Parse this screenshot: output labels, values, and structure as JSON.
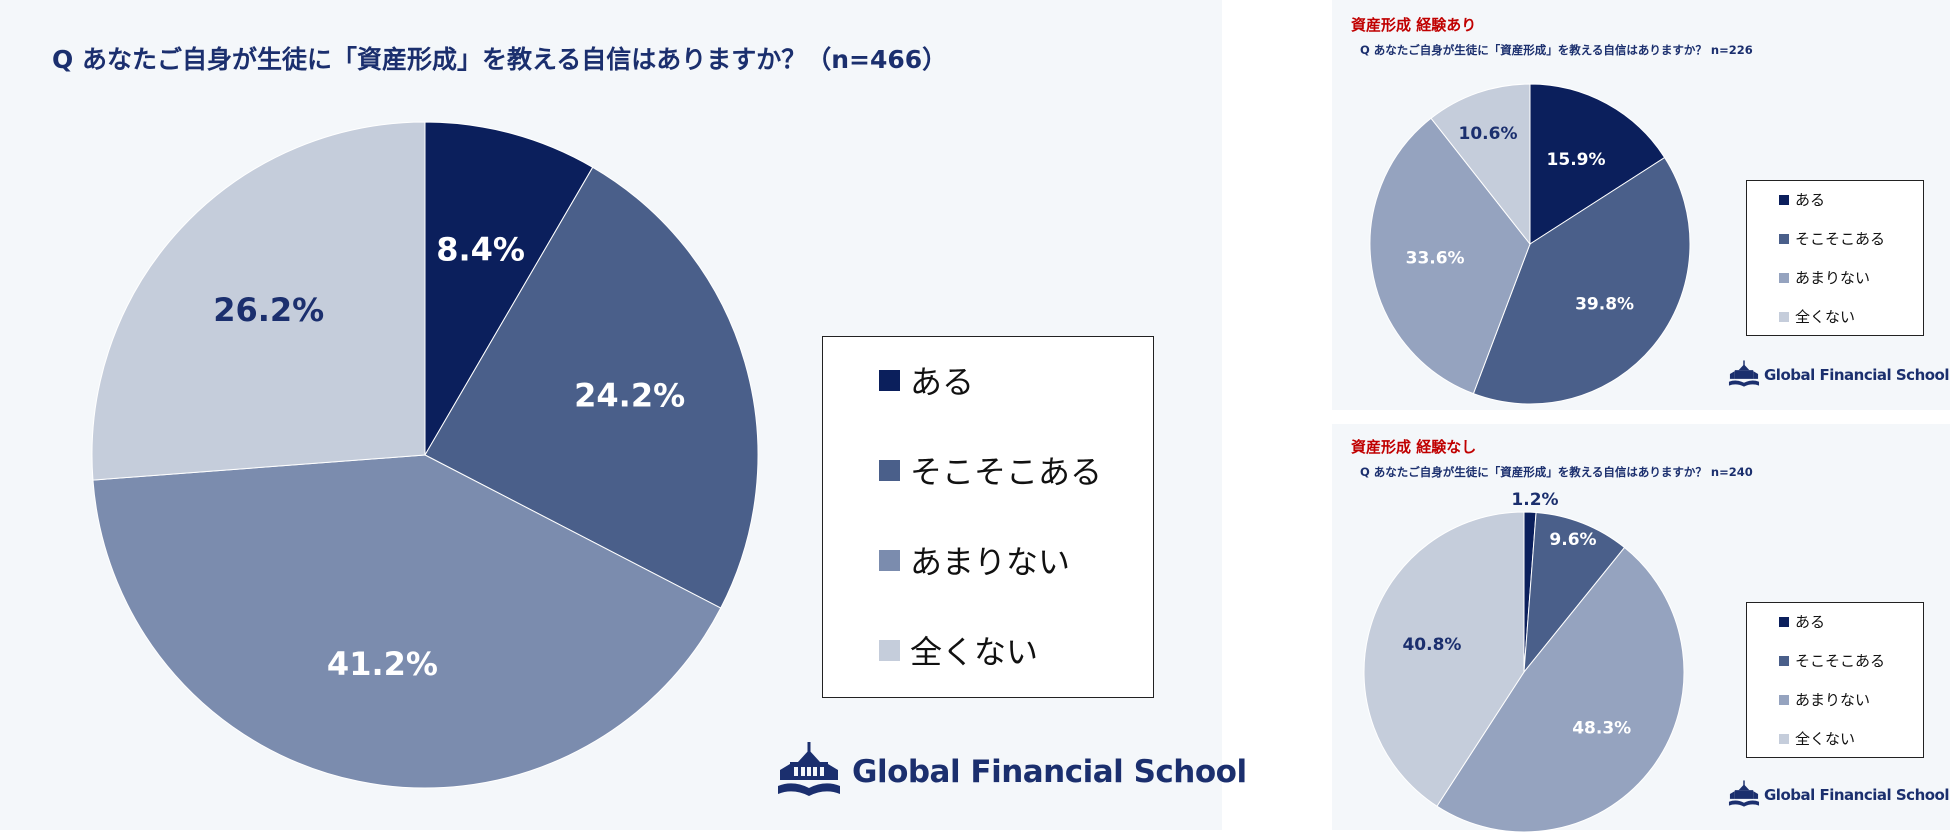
{
  "colors": {
    "aru": "#0b1f5c",
    "sokosoko": "#4a5f8a",
    "amari": "#7b8cae",
    "amari_small": "#95a3bf",
    "mattaku": "#c5cddb",
    "title": "#1b2f6e",
    "subtitle": "#c00000"
  },
  "logo": {
    "text": "Global Financial School",
    "icon": "school-building-icon"
  },
  "chart_data": [
    {
      "type": "pie",
      "title": "Q あなたご自身が生徒に「資産形成」を教える自信はありますか？（n=466）",
      "categories": [
        "ある",
        "そこそこある",
        "あまりない",
        "全くない"
      ],
      "values": [
        8.4,
        24.2,
        41.2,
        26.2
      ],
      "labels": [
        "8.4%",
        "24.2%",
        "41.2%",
        "26.2%"
      ],
      "legend_position": "right"
    },
    {
      "type": "pie",
      "subtitle": "資産形成 経験あり",
      "title": "Q あなたご自身が生徒に「資産形成」を教える自信はありますか？ n=226",
      "categories": [
        "ある",
        "そこそこある",
        "あまりない",
        "全くない"
      ],
      "values": [
        15.9,
        39.8,
        33.6,
        10.6
      ],
      "labels": [
        "15.9%",
        "39.8%",
        "33.6%",
        "10.6%"
      ],
      "legend_position": "right"
    },
    {
      "type": "pie",
      "subtitle": "資産形成 経験なし",
      "title": "Q あなたご自身が生徒に「資産形成」を教える自信はありますか？ n=240",
      "categories": [
        "ある",
        "そこそこある",
        "あまりない",
        "全くない"
      ],
      "values": [
        1.2,
        9.6,
        48.3,
        40.8
      ],
      "labels": [
        "1.2%",
        "9.6%",
        "48.3%",
        "40.8%"
      ],
      "legend_position": "right"
    }
  ]
}
